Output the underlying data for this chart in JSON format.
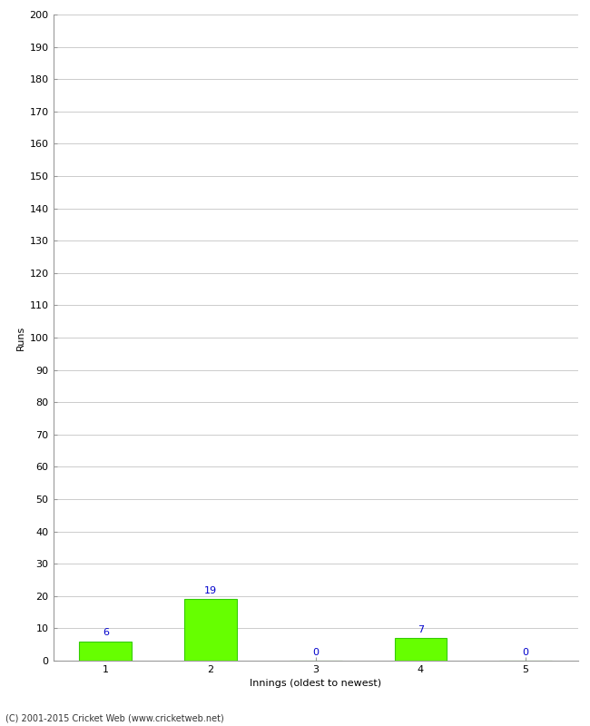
{
  "xlabel": "Innings (oldest to newest)",
  "ylabel": "Runs",
  "categories": [
    1,
    2,
    3,
    4,
    5
  ],
  "values": [
    6,
    19,
    0,
    7,
    0
  ],
  "bar_color": "#66ff00",
  "bar_edge_color": "#33cc00",
  "label_color": "#0000cc",
  "ylim": [
    0,
    200
  ],
  "yticks": [
    0,
    10,
    20,
    30,
    40,
    50,
    60,
    70,
    80,
    90,
    100,
    110,
    120,
    130,
    140,
    150,
    160,
    170,
    180,
    190,
    200
  ],
  "footnote": "(C) 2001-2015 Cricket Web (www.cricketweb.net)",
  "bg_color": "#ffffff",
  "grid_color": "#cccccc",
  "bar_width": 0.5,
  "label_fontsize": 8,
  "axis_fontsize": 8,
  "ylabel_fontsize": 8
}
